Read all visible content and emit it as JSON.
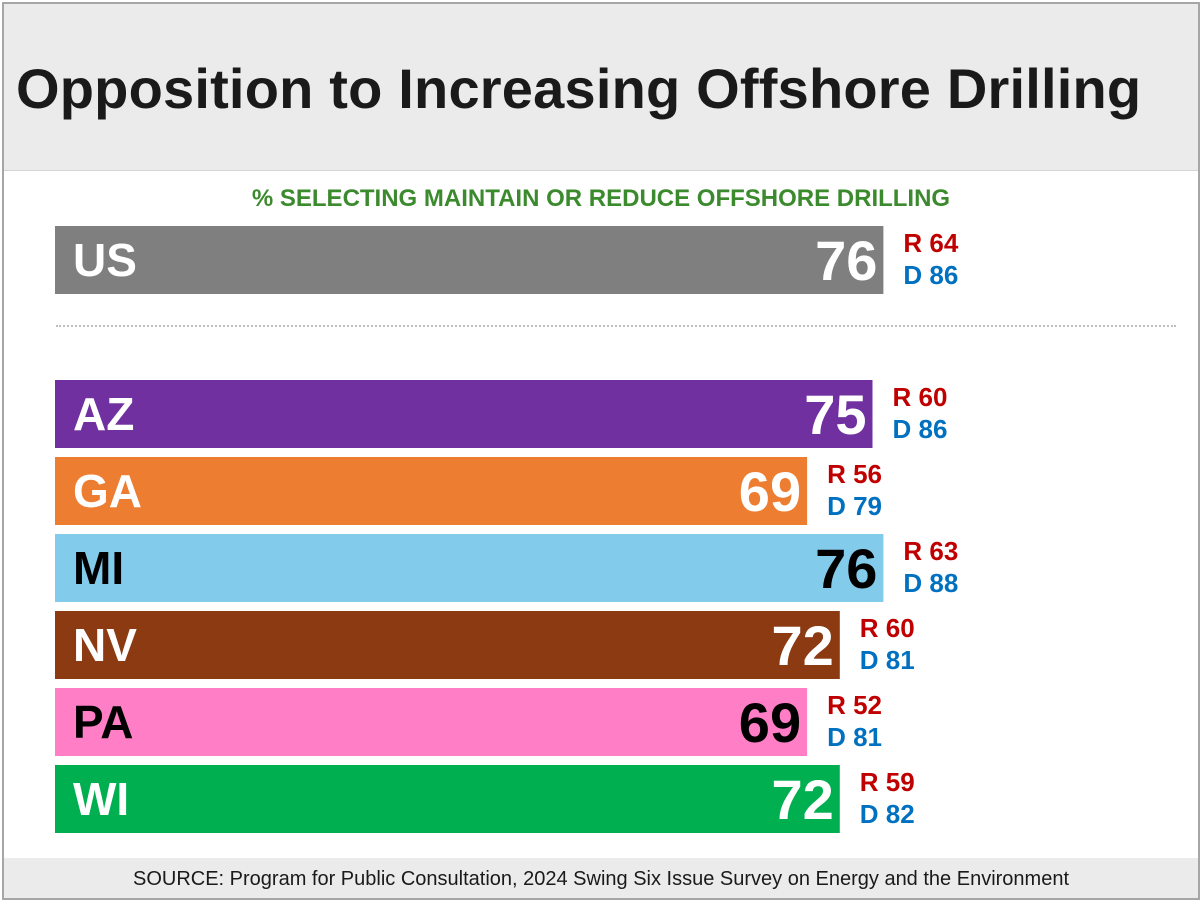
{
  "chart_data": {
    "type": "bar",
    "orientation": "horizontal",
    "title": "Opposition to Increasing Offshore Drilling",
    "subtitle": "% SELECTING MAINTAIN OR REDUCE OFFSHORE DRILLING",
    "source": "SOURCE: Program for Public Consultation, 2024 Swing Six Issue Survey on Energy and the Environment",
    "grid": false,
    "categories": [
      "US",
      "AZ",
      "GA",
      "MI",
      "NV",
      "PA",
      "WI"
    ],
    "bars": [
      {
        "label": "US",
        "value": 76,
        "value_text": "76",
        "r_text": "R 64",
        "d_text": "D 86",
        "r": 64,
        "d": 86,
        "color": "#7f7f7f",
        "text_color": "#ffffff"
      },
      {
        "label": "AZ",
        "value": 75,
        "value_text": "75",
        "r_text": "R 60",
        "d_text": "D 86",
        "r": 60,
        "d": 86,
        "color": "#7030a0",
        "text_color": "#ffffff"
      },
      {
        "label": "GA",
        "value": 69,
        "value_text": "69",
        "r_text": "R 56",
        "d_text": "D 79",
        "r": 56,
        "d": 79,
        "color": "#ed7d31",
        "text_color": "#ffffff"
      },
      {
        "label": "MI",
        "value": 76,
        "value_text": "76",
        "r_text": "R 63",
        "d_text": "D 88",
        "r": 63,
        "d": 88,
        "color": "#83cbeb",
        "text_color": "#000000"
      },
      {
        "label": "NV",
        "value": 72,
        "value_text": "72",
        "r_text": "R 60",
        "d_text": "D 81",
        "r": 60,
        "d": 81,
        "color": "#8b3a12",
        "text_color": "#ffffff"
      },
      {
        "label": "PA",
        "value": 69,
        "value_text": "69",
        "r_text": "R 52",
        "d_text": "D 81",
        "r": 52,
        "d": 81,
        "color": "#ff7ec6",
        "text_color": "#000000"
      },
      {
        "label": "WI",
        "value": 72,
        "value_text": "72",
        "r_text": "R 59",
        "d_text": "D 82",
        "r": 59,
        "d": 82,
        "color": "#00b050",
        "text_color": "#ffffff"
      }
    ],
    "colors": {
      "republican": "#c00000",
      "democrat": "#0070c0",
      "subtitle": "#3c8a2e",
      "title_band": "#ebebeb"
    }
  }
}
